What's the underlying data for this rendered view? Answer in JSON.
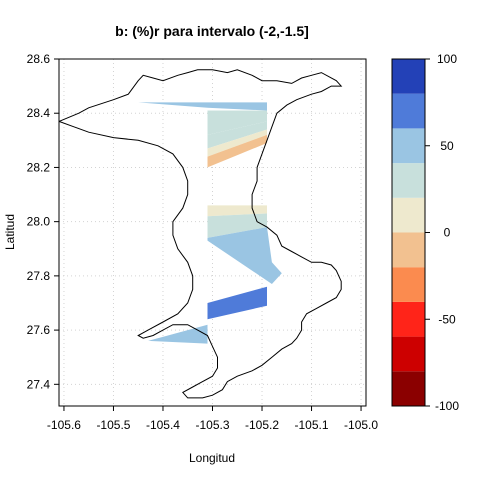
{
  "chart_data": {
    "type": "heatmap",
    "title": "b:   (%)r para intervalo (-2,-1.5]",
    "xlabel": "Longitud",
    "ylabel": "Latitud",
    "xlim": [
      -105.61,
      -104.99
    ],
    "ylim": [
      27.32,
      28.6
    ],
    "x_ticks": [
      -105.6,
      -105.5,
      -105.4,
      -105.3,
      -105.2,
      -105.1,
      -105.0
    ],
    "x_tick_labels": [
      "-105.6",
      "-105.5",
      "-105.4",
      "-105.3",
      "-105.2",
      "-105.1",
      "-105.0"
    ],
    "y_ticks": [
      27.4,
      27.6,
      27.8,
      28.0,
      28.2,
      28.4,
      28.6
    ],
    "y_tick_labels": [
      "27.4",
      "27.6",
      "27.8",
      "28.0",
      "28.2",
      "28.4",
      "28.6"
    ],
    "grid": true,
    "legend": {
      "position": "right",
      "range": [
        -100,
        100
      ],
      "tick_values": [
        -100,
        -50,
        0,
        50,
        100
      ],
      "tick_labels": [
        "-100",
        "-50",
        "0",
        "50",
        "100"
      ],
      "bins": [
        {
          "from": -100,
          "to": -80,
          "color": "#8b0000"
        },
        {
          "from": -80,
          "to": -60,
          "color": "#cd0000"
        },
        {
          "from": -60,
          "to": -40,
          "color": "#ff2419"
        },
        {
          "from": -40,
          "to": -20,
          "color": "#fb8b4f"
        },
        {
          "from": -20,
          "to": 0,
          "color": "#f2c190"
        },
        {
          "from": 0,
          "to": 20,
          "color": "#eee9ce"
        },
        {
          "from": 20,
          "to": 40,
          "color": "#c8e0dc"
        },
        {
          "from": 40,
          "to": 60,
          "color": "#9ac5e3"
        },
        {
          "from": 60,
          "to": 80,
          "color": "#4f7bd9"
        },
        {
          "from": 80,
          "to": 100,
          "color": "#2341b7"
        }
      ]
    },
    "boundary": [
      [
        -105.61,
        28.37
      ],
      [
        -105.57,
        28.4
      ],
      [
        -105.55,
        28.42
      ],
      [
        -105.5,
        28.45
      ],
      [
        -105.47,
        28.47
      ],
      [
        -105.45,
        28.52
      ],
      [
        -105.44,
        28.54
      ],
      [
        -105.42,
        28.53
      ],
      [
        -105.4,
        28.52
      ],
      [
        -105.37,
        28.54
      ],
      [
        -105.35,
        28.55
      ],
      [
        -105.33,
        28.56
      ],
      [
        -105.3,
        28.56
      ],
      [
        -105.27,
        28.55
      ],
      [
        -105.25,
        28.56
      ],
      [
        -105.22,
        28.54
      ],
      [
        -105.2,
        28.52
      ],
      [
        -105.17,
        28.52
      ],
      [
        -105.14,
        28.51
      ],
      [
        -105.12,
        28.53
      ],
      [
        -105.1,
        28.54
      ],
      [
        -105.08,
        28.55
      ],
      [
        -105.05,
        28.52
      ],
      [
        -105.04,
        28.5
      ],
      [
        -105.06,
        28.5
      ],
      [
        -105.08,
        28.48
      ],
      [
        -105.1,
        28.47
      ],
      [
        -105.13,
        28.45
      ],
      [
        -105.15,
        28.43
      ],
      [
        -105.17,
        28.4
      ],
      [
        -105.18,
        28.35
      ],
      [
        -105.19,
        28.3
      ],
      [
        -105.2,
        28.25
      ],
      [
        -105.21,
        28.2
      ],
      [
        -105.21,
        28.15
      ],
      [
        -105.22,
        28.1
      ],
      [
        -105.22,
        28.05
      ],
      [
        -105.21,
        28.0
      ],
      [
        -105.19,
        27.98
      ],
      [
        -105.17,
        27.95
      ],
      [
        -105.16,
        27.91
      ],
      [
        -105.14,
        27.89
      ],
      [
        -105.12,
        27.87
      ],
      [
        -105.1,
        27.85
      ],
      [
        -105.08,
        27.85
      ],
      [
        -105.06,
        27.84
      ],
      [
        -105.05,
        27.82
      ],
      [
        -105.04,
        27.78
      ],
      [
        -105.04,
        27.75
      ],
      [
        -105.05,
        27.72
      ],
      [
        -105.07,
        27.7
      ],
      [
        -105.09,
        27.68
      ],
      [
        -105.11,
        27.66
      ],
      [
        -105.12,
        27.63
      ],
      [
        -105.12,
        27.6
      ],
      [
        -105.13,
        27.57
      ],
      [
        -105.14,
        27.55
      ],
      [
        -105.16,
        27.53
      ],
      [
        -105.18,
        27.5
      ],
      [
        -105.2,
        27.47
      ],
      [
        -105.22,
        27.45
      ],
      [
        -105.25,
        27.43
      ],
      [
        -105.27,
        27.41
      ],
      [
        -105.28,
        27.38
      ],
      [
        -105.3,
        27.36
      ],
      [
        -105.32,
        27.35
      ],
      [
        -105.35,
        27.35
      ],
      [
        -105.36,
        27.37
      ],
      [
        -105.34,
        27.39
      ],
      [
        -105.32,
        27.41
      ],
      [
        -105.3,
        27.43
      ],
      [
        -105.29,
        27.46
      ],
      [
        -105.29,
        27.5
      ],
      [
        -105.3,
        27.54
      ],
      [
        -105.31,
        27.58
      ],
      [
        -105.33,
        27.6
      ],
      [
        -105.35,
        27.62
      ],
      [
        -105.38,
        27.62
      ],
      [
        -105.4,
        27.6
      ],
      [
        -105.42,
        27.58
      ],
      [
        -105.44,
        27.57
      ],
      [
        -105.45,
        27.58
      ],
      [
        -105.43,
        27.6
      ],
      [
        -105.4,
        27.63
      ],
      [
        -105.37,
        27.66
      ],
      [
        -105.35,
        27.7
      ],
      [
        -105.34,
        27.75
      ],
      [
        -105.34,
        27.8
      ],
      [
        -105.35,
        27.85
      ],
      [
        -105.37,
        27.9
      ],
      [
        -105.38,
        27.95
      ],
      [
        -105.38,
        28.0
      ],
      [
        -105.36,
        28.05
      ],
      [
        -105.35,
        28.1
      ],
      [
        -105.35,
        28.15
      ],
      [
        -105.36,
        28.2
      ],
      [
        -105.38,
        28.25
      ],
      [
        -105.41,
        28.28
      ],
      [
        -105.45,
        28.3
      ],
      [
        -105.5,
        28.31
      ],
      [
        -105.55,
        28.33
      ],
      [
        -105.58,
        28.35
      ],
      [
        -105.61,
        28.37
      ]
    ],
    "regions": [
      {
        "value": 45,
        "points": [
          [
            -105.45,
            28.44
          ],
          [
            -105.19,
            28.44
          ],
          [
            -105.19,
            28.41
          ],
          [
            -105.31,
            28.42
          ]
        ]
      },
      {
        "value": 30,
        "points": [
          [
            -105.31,
            28.41
          ],
          [
            -105.19,
            28.41
          ],
          [
            -105.19,
            28.37
          ],
          [
            -105.31,
            28.32
          ]
        ]
      },
      {
        "value": 30,
        "points": [
          [
            -105.31,
            28.32
          ],
          [
            -105.19,
            28.37
          ],
          [
            -105.19,
            28.34
          ],
          [
            -105.31,
            28.27
          ]
        ]
      },
      {
        "value": 10,
        "points": [
          [
            -105.31,
            28.27
          ],
          [
            -105.19,
            28.34
          ],
          [
            -105.19,
            28.32
          ],
          [
            -105.31,
            28.24
          ]
        ]
      },
      {
        "value": -10,
        "points": [
          [
            -105.31,
            28.24
          ],
          [
            -105.19,
            28.32
          ],
          [
            -105.19,
            28.29
          ],
          [
            -105.31,
            28.2
          ]
        ]
      },
      {
        "value": 10,
        "points": [
          [
            -105.31,
            28.06
          ],
          [
            -105.19,
            28.06
          ],
          [
            -105.19,
            28.03
          ],
          [
            -105.31,
            28.02
          ]
        ]
      },
      {
        "value": 30,
        "points": [
          [
            -105.31,
            28.02
          ],
          [
            -105.19,
            28.03
          ],
          [
            -105.19,
            27.98
          ],
          [
            -105.31,
            27.94
          ]
        ]
      },
      {
        "value": 50,
        "points": [
          [
            -105.31,
            27.94
          ],
          [
            -105.19,
            27.98
          ],
          [
            -105.18,
            27.85
          ],
          [
            -105.16,
            27.81
          ],
          [
            -105.18,
            27.77
          ],
          [
            -105.31,
            27.93
          ]
        ]
      },
      {
        "value": 70,
        "points": [
          [
            -105.31,
            27.7
          ],
          [
            -105.19,
            27.76
          ],
          [
            -105.19,
            27.69
          ],
          [
            -105.31,
            27.64
          ]
        ]
      },
      {
        "value": 50,
        "points": [
          [
            -105.31,
            27.62
          ],
          [
            -105.43,
            27.56
          ],
          [
            -105.31,
            27.55
          ]
        ]
      }
    ]
  }
}
